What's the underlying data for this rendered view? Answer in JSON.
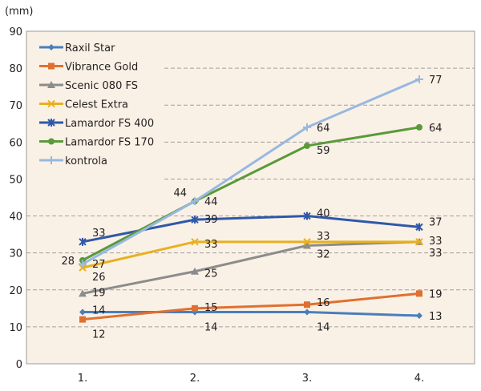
{
  "chart_data": {
    "type": "line",
    "ylabel": "(mm)",
    "ylim": [
      0,
      90
    ],
    "yticks": [
      "0",
      "10",
      "20",
      "30",
      "40",
      "50",
      "60",
      "70",
      "80",
      "90"
    ],
    "categories": [
      "1.",
      "2.",
      "3.",
      "4."
    ],
    "grid": "horizontal dashed",
    "legend_position": "top-left",
    "series": [
      {
        "name": "Raxil Star",
        "values": [
          14,
          14,
          14,
          13
        ],
        "color": "#4a7ebb",
        "marker": "diamond",
        "labels": [
          "14",
          "14",
          "14",
          "13"
        ]
      },
      {
        "name": "Vibrance Gold",
        "values": [
          12,
          15,
          16,
          19
        ],
        "color": "#e07030",
        "marker": "square",
        "labels": [
          "12",
          "15",
          "16",
          "19"
        ]
      },
      {
        "name": "Scenic 080 FS",
        "values": [
          19,
          25,
          32,
          33
        ],
        "color": "#8c8c8c",
        "marker": "triangle",
        "labels": [
          "19",
          "25",
          "32",
          "33"
        ]
      },
      {
        "name": "Celest Extra",
        "values": [
          26,
          33,
          33,
          33
        ],
        "color": "#e8b020",
        "marker": "x",
        "labels": [
          "26",
          "33",
          "33",
          "33"
        ]
      },
      {
        "name": "Lamardor FS 400",
        "values": [
          33,
          39,
          40,
          37
        ],
        "color": "#3058a8",
        "marker": "star",
        "labels": [
          "33",
          "39",
          "40",
          "37"
        ]
      },
      {
        "name": "Lamardor FS 170",
        "values": [
          28,
          44,
          59,
          64
        ],
        "color": "#5a9a3a",
        "marker": "circle",
        "labels": [
          "28",
          "44",
          "59",
          "64"
        ]
      },
      {
        "name": "kontrola",
        "values": [
          27,
          44,
          64,
          77
        ],
        "color": "#98b8e0",
        "marker": "plus",
        "labels": [
          "27",
          "44",
          "64",
          "77"
        ]
      }
    ]
  }
}
